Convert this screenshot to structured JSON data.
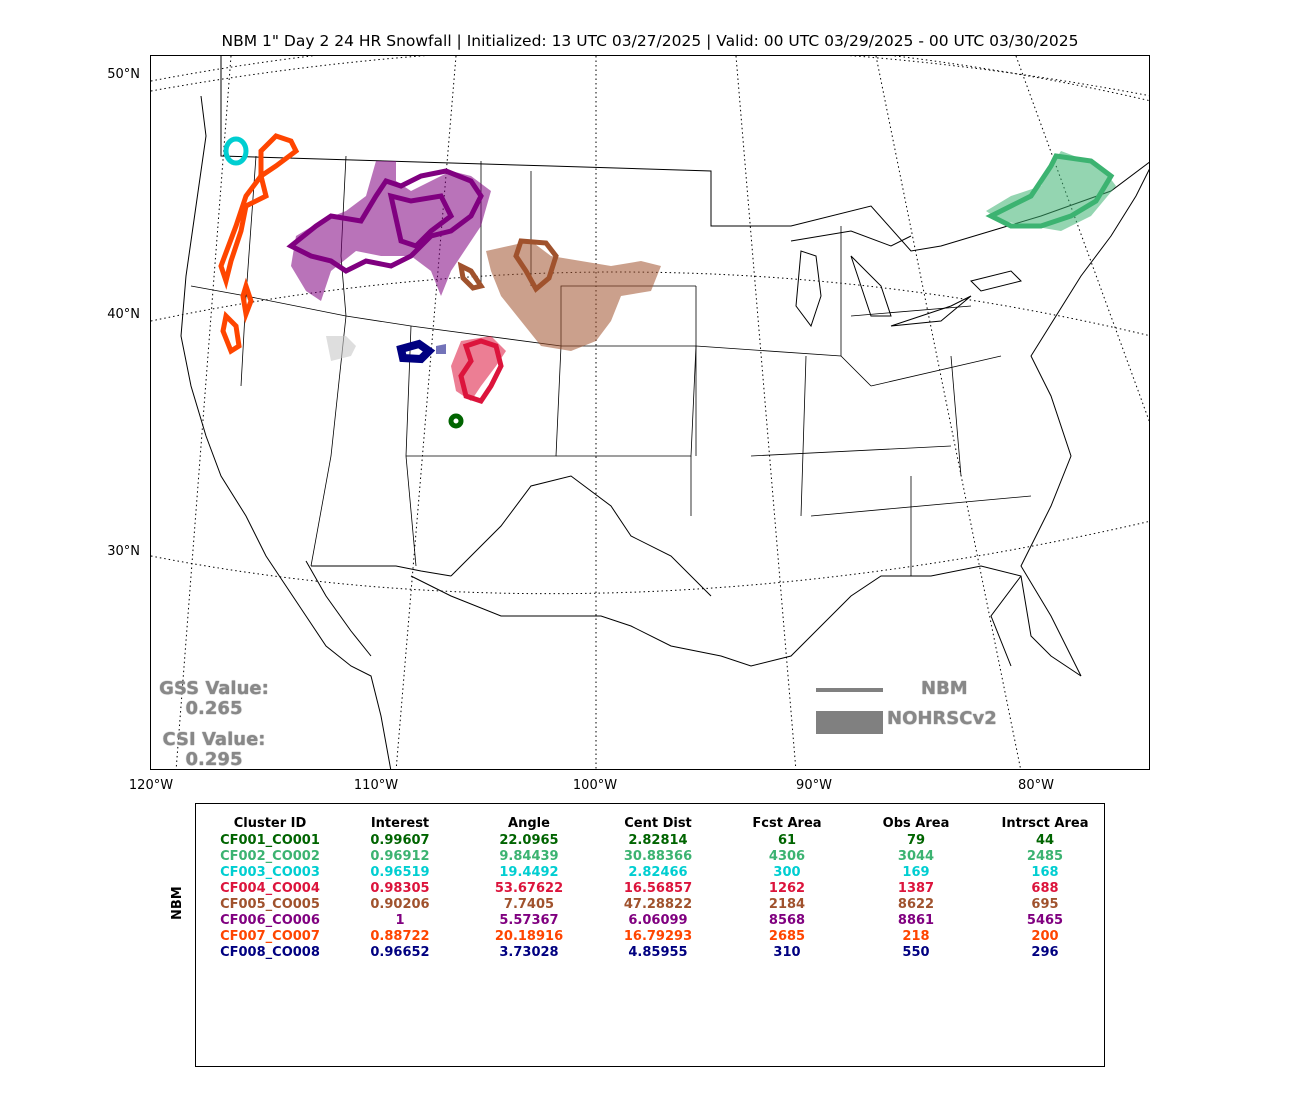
{
  "title": "NBM 1\" Day 2 24 HR Snowfall | Initialized: 13 UTC 03/27/2025 | Valid: 00 UTC 03/29/2025 - 00 UTC 03/30/2025",
  "lat_labels": [
    "50°N",
    "40°N",
    "30°N"
  ],
  "lon_labels": [
    "120°W",
    "110°W",
    "100°W",
    "90°W",
    "80°W"
  ],
  "scores": {
    "gss_label": "GSS Value:",
    "gss_value": "0.265",
    "csi_label": "CSI Value:",
    "csi_value": "0.295"
  },
  "legend": {
    "line_label": "NBM",
    "fill_label": "NOHRSCv2",
    "color": "#808080"
  },
  "table": {
    "ylabel": "NBM",
    "headers": [
      "Cluster ID",
      "Interest",
      "Angle",
      "Cent Dist",
      "Fcst Area",
      "Obs Area",
      "Intrsct Area"
    ],
    "rows": [
      {
        "color": "#006400",
        "cells": [
          "CF001_CO001",
          "0.99607",
          "22.0965",
          "2.82814",
          "61",
          "79",
          "44"
        ]
      },
      {
        "color": "#3CB371",
        "cells": [
          "CF002_CO002",
          "0.96912",
          "9.84439",
          "30.88366",
          "4306",
          "3044",
          "2485"
        ]
      },
      {
        "color": "#00CED1",
        "cells": [
          "CF003_CO003",
          "0.96519",
          "19.4492",
          "2.82466",
          "300",
          "169",
          "168"
        ]
      },
      {
        "color": "#DC143C",
        "cells": [
          "CF004_CO004",
          "0.98305",
          "53.67622",
          "16.56857",
          "1262",
          "1387",
          "688"
        ]
      },
      {
        "color": "#A0522D",
        "cells": [
          "CF005_CO005",
          "0.90206",
          "7.7405",
          "47.28822",
          "2184",
          "8622",
          "695"
        ]
      },
      {
        "color": "#800080",
        "cells": [
          "CF006_CO006",
          "1",
          "5.57367",
          "6.06099",
          "8568",
          "8861",
          "5465"
        ]
      },
      {
        "color": "#FF4500",
        "cells": [
          "CF007_CO007",
          "0.88722",
          "20.18916",
          "16.79293",
          "2685",
          "218",
          "200"
        ]
      },
      {
        "color": "#000080",
        "cells": [
          "CF008_CO008",
          "0.96652",
          "3.73028",
          "4.85955",
          "310",
          "550",
          "296"
        ]
      }
    ]
  }
}
